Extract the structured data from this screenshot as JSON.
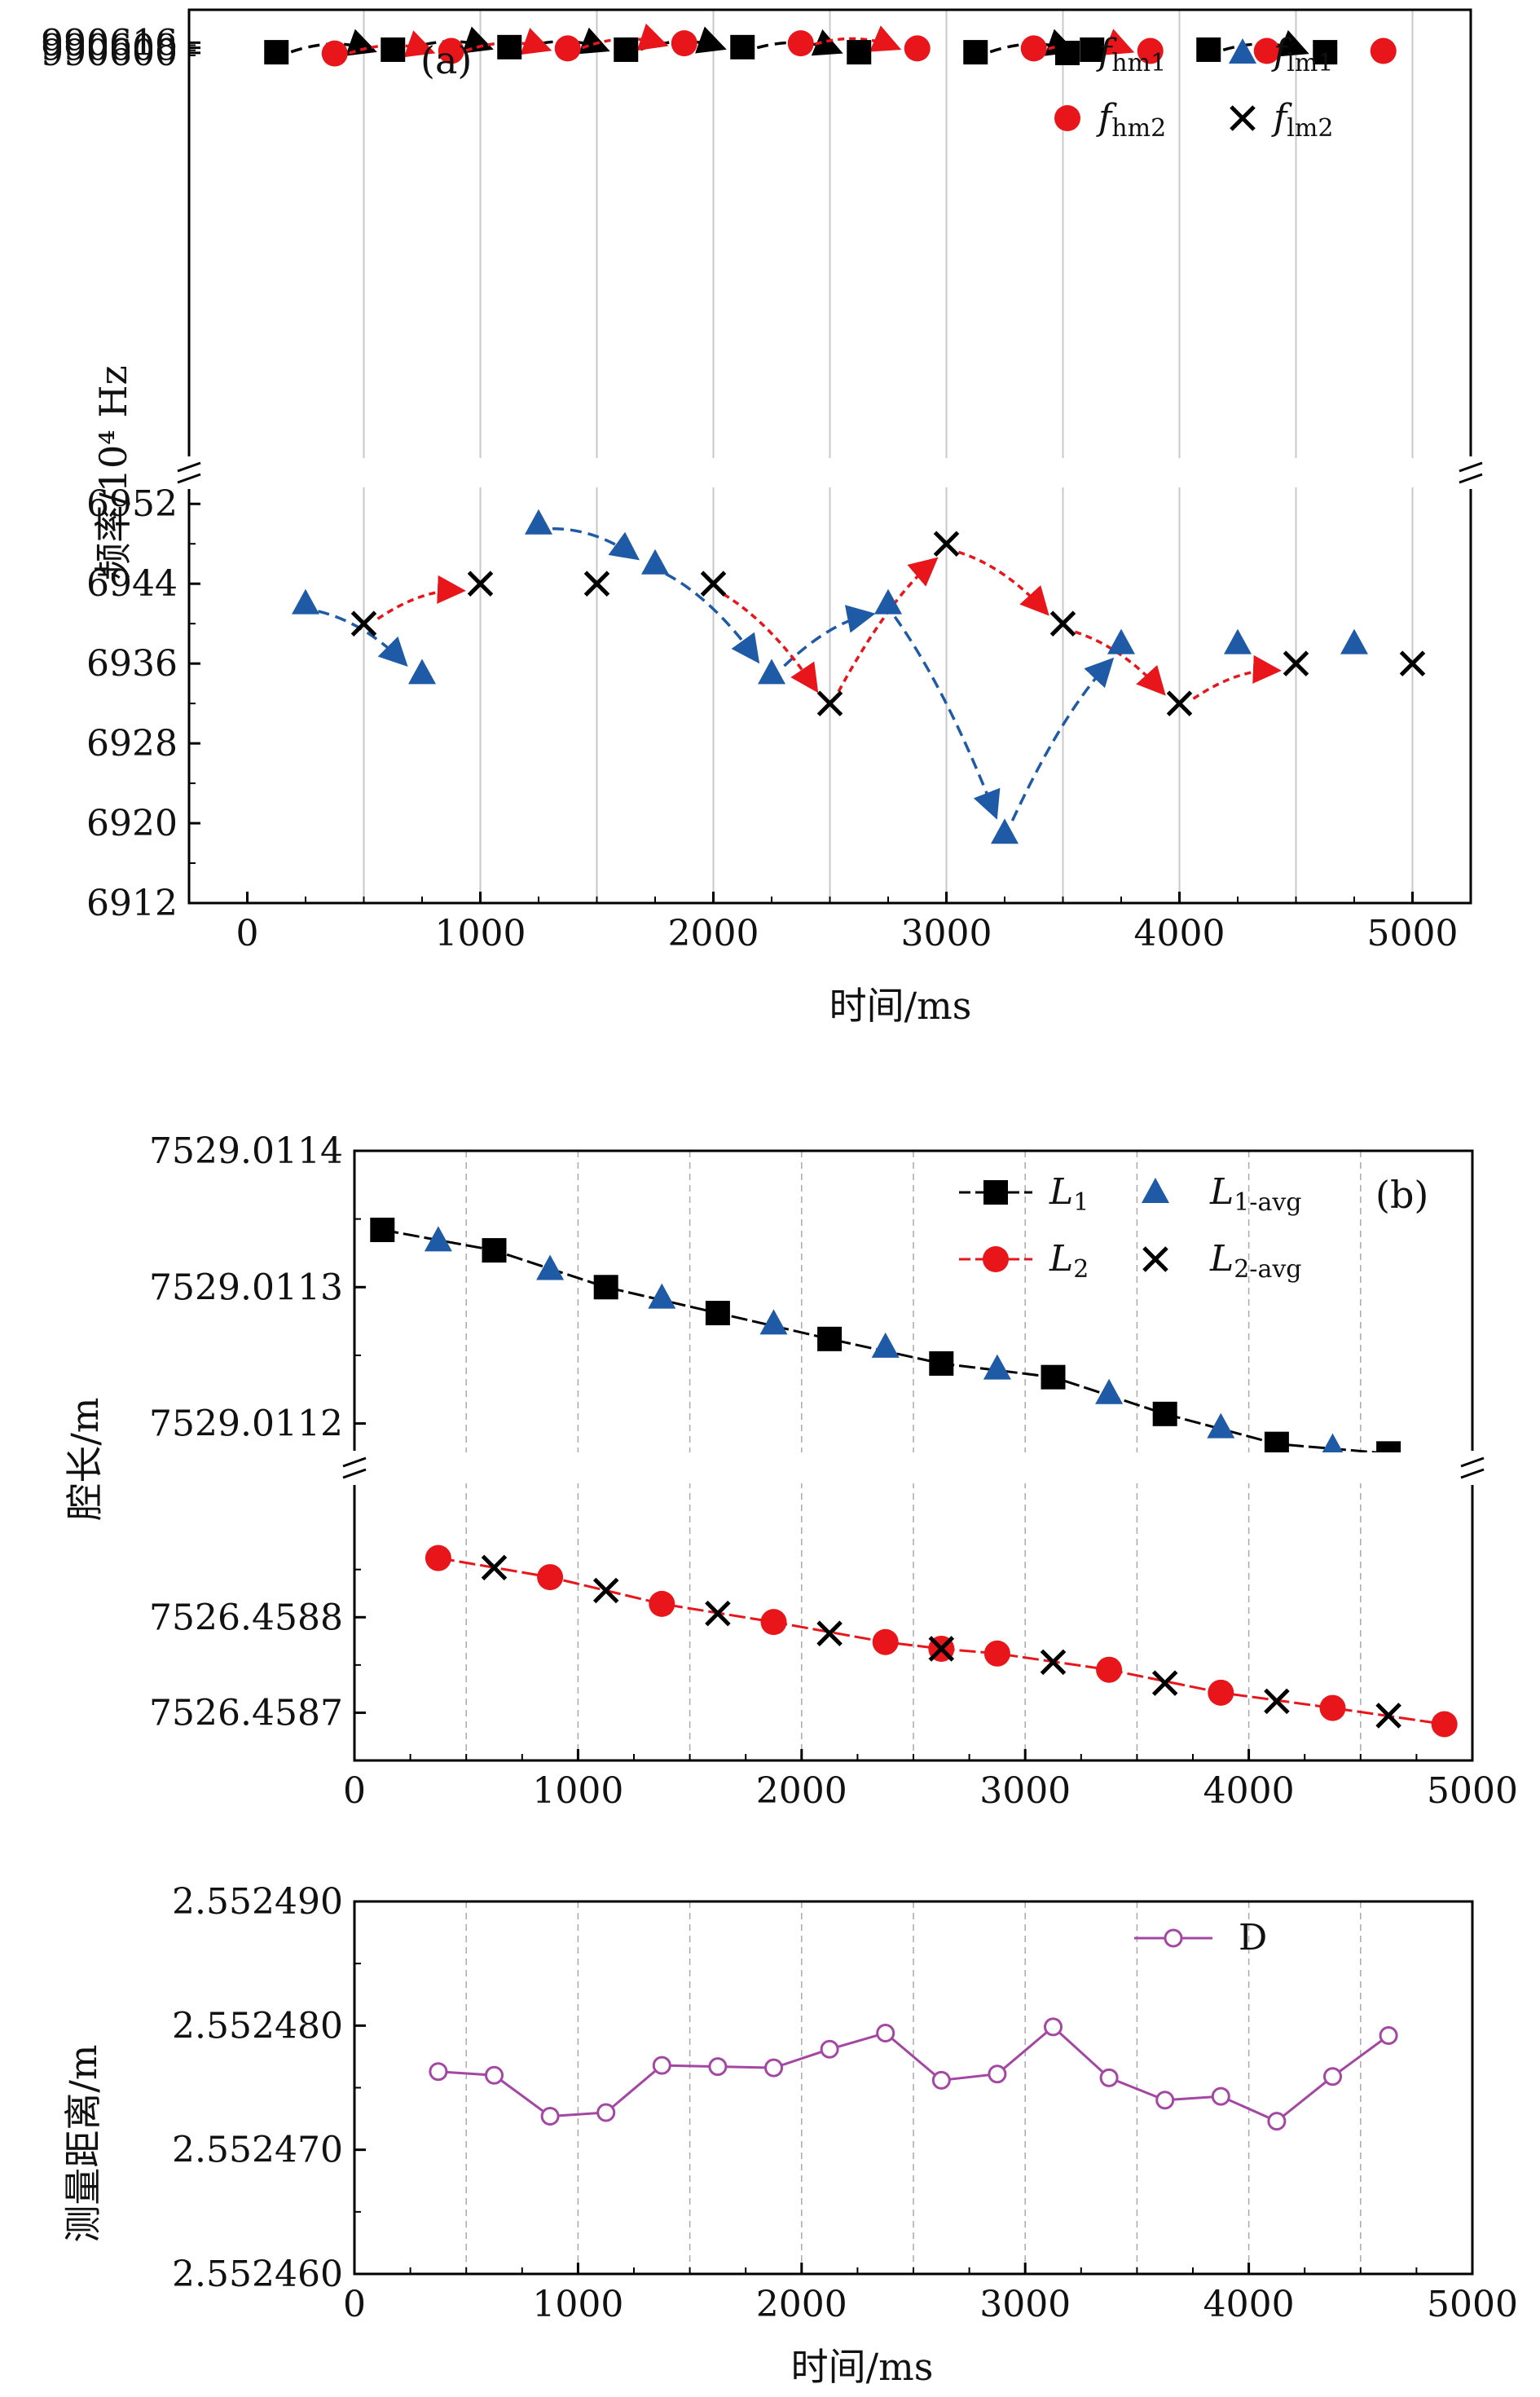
{
  "figure": {
    "panel_a_label": "(a)",
    "panel_b_label": "(b)"
  },
  "chart_data": [
    {
      "type": "scatter",
      "panel": "(a)",
      "xlabel": "时间/ms",
      "ylabel": "频率/10⁴ Hz",
      "xlim": [
        -250,
        5250
      ],
      "xticks": [
        "0",
        "1000",
        "2000",
        "3000",
        "4000",
        "5000"
      ],
      "broken_axis": true,
      "upper_ylim": [
        989993,
        990619
      ],
      "upper_yticks": [
        "990600",
        "990608",
        "990616"
      ],
      "lower_ylim": [
        6912,
        6953
      ],
      "lower_yticks": [
        "6912",
        "6920",
        "6928",
        "6936",
        "6944",
        "6952"
      ],
      "legend": [
        {
          "label": "f",
          "sub": "hm1",
          "marker": "square",
          "color": "#000000"
        },
        {
          "label": "f",
          "sub": "lm1",
          "marker": "triangle",
          "color": "#1f5aa6"
        },
        {
          "label": "f",
          "sub": "hm2",
          "marker": "circle",
          "color": "#e8151b"
        },
        {
          "label": "f",
          "sub": "lm2",
          "marker": "cross",
          "color": "#000000"
        }
      ],
      "series": [
        {
          "name": "f_hm1",
          "axis": "upper",
          "marker": "square",
          "color": "#000000",
          "x": [
            125,
            625,
            1125,
            1625,
            2125,
            2625,
            3125,
            3625,
            4125,
            4625
          ],
          "y": [
            990601,
            990605,
            990609,
            990605,
            990609,
            990601,
            990601,
            990605,
            990605,
            990601
          ]
        },
        {
          "name": "f_hm2",
          "axis": "upper",
          "marker": "circle",
          "color": "#e8151b",
          "x": [
            375,
            875,
            1375,
            1875,
            2375,
            2875,
            3375,
            3875,
            4375,
            4875
          ],
          "y": [
            990599,
            990603,
            990607,
            990615,
            990615,
            990607,
            990607,
            990603,
            990603,
            990603
          ]
        },
        {
          "name": "f_lm1",
          "axis": "lower",
          "marker": "triangle",
          "color": "#1f5aa6",
          "x": [
            250,
            750,
            1250,
            1750,
            2250,
            2750,
            3250,
            3750,
            4250,
            4750
          ],
          "y": [
            6942,
            6935,
            6950,
            6946,
            6935,
            6942,
            6919,
            6938,
            6938,
            6938
          ]
        },
        {
          "name": "f_lm2",
          "axis": "lower",
          "marker": "cross",
          "color": "#000000",
          "x": [
            500,
            1000,
            1500,
            2000,
            2500,
            3000,
            3500,
            4000,
            4500,
            5000
          ],
          "y": [
            6940,
            6944,
            6944,
            6944,
            6932,
            6948,
            6940,
            6932,
            6936,
            6936
          ]
        }
      ],
      "arrows": [
        {
          "axis": "upper",
          "color": "#000000",
          "from": [
            125,
            990601
          ],
          "to": [
            625,
            990605
          ]
        },
        {
          "axis": "upper",
          "color": "#000000",
          "from": [
            625,
            990605
          ],
          "to": [
            1125,
            990609
          ]
        },
        {
          "axis": "upper",
          "color": "#000000",
          "from": [
            1125,
            990609
          ],
          "to": [
            1625,
            990605
          ]
        },
        {
          "axis": "upper",
          "color": "#000000",
          "from": [
            1625,
            990605
          ],
          "to": [
            2125,
            990609
          ]
        },
        {
          "axis": "upper",
          "color": "#000000",
          "from": [
            2125,
            990609
          ],
          "to": [
            2625,
            990601
          ]
        },
        {
          "axis": "upper",
          "color": "#000000",
          "from": [
            3125,
            990601
          ],
          "to": [
            3625,
            990605
          ]
        },
        {
          "axis": "upper",
          "color": "#000000",
          "from": [
            4125,
            990605
          ],
          "to": [
            4625,
            990601
          ]
        },
        {
          "axis": "upper",
          "color": "#e8151b",
          "from": [
            375,
            990599
          ],
          "to": [
            875,
            990603
          ]
        },
        {
          "axis": "upper",
          "color": "#e8151b",
          "from": [
            875,
            990603
          ],
          "to": [
            1375,
            990607
          ]
        },
        {
          "axis": "upper",
          "color": "#e8151b",
          "from": [
            1375,
            990607
          ],
          "to": [
            1875,
            990615
          ]
        },
        {
          "axis": "upper",
          "color": "#e8151b",
          "from": [
            2375,
            990615
          ],
          "to": [
            2875,
            990607
          ]
        },
        {
          "axis": "upper",
          "color": "#e8151b",
          "from": [
            3375,
            990607
          ],
          "to": [
            3875,
            990603
          ]
        },
        {
          "axis": "lower",
          "color": "#1f5aa6",
          "from": [
            250,
            6942
          ],
          "to": [
            750,
            6935
          ]
        },
        {
          "axis": "lower",
          "color": "#1f5aa6",
          "from": [
            1250,
            6950
          ],
          "to": [
            1750,
            6946
          ]
        },
        {
          "axis": "lower",
          "color": "#1f5aa6",
          "from": [
            1750,
            6946
          ],
          "to": [
            2250,
            6935
          ]
        },
        {
          "axis": "lower",
          "color": "#1f5aa6",
          "from": [
            2250,
            6935
          ],
          "to": [
            2750,
            6942
          ]
        },
        {
          "axis": "lower",
          "color": "#1f5aa6",
          "from": [
            2750,
            6942
          ],
          "to": [
            3250,
            6919
          ]
        },
        {
          "axis": "lower",
          "color": "#1f5aa6",
          "from": [
            3250,
            6919
          ],
          "to": [
            3750,
            6938
          ]
        },
        {
          "axis": "lower",
          "color": "#e8151b",
          "from": [
            500,
            6940
          ],
          "to": [
            1000,
            6944
          ]
        },
        {
          "axis": "lower",
          "color": "#e8151b",
          "from": [
            2000,
            6944
          ],
          "to": [
            2500,
            6932
          ]
        },
        {
          "axis": "lower",
          "color": "#e8151b",
          "from": [
            2500,
            6932
          ],
          "to": [
            3000,
            6948
          ]
        },
        {
          "axis": "lower",
          "color": "#e8151b",
          "from": [
            3000,
            6948
          ],
          "to": [
            3500,
            6940
          ]
        },
        {
          "axis": "lower",
          "color": "#e8151b",
          "from": [
            3500,
            6940
          ],
          "to": [
            4000,
            6932
          ]
        },
        {
          "axis": "lower",
          "color": "#e8151b",
          "from": [
            4000,
            6932
          ],
          "to": [
            4500,
            6936
          ]
        }
      ]
    },
    {
      "type": "line",
      "panel": "(b)",
      "xlabel": "",
      "ylabel": "腔长/m",
      "xlim": [
        0,
        5000
      ],
      "xticks": [
        "0",
        "1000",
        "2000",
        "3000",
        "4000",
        "5000"
      ],
      "broken_axis": true,
      "upper_ylim": [
        7529.01118,
        7529.0114
      ],
      "upper_yticks": [
        "7529.0112",
        "7529.0113",
        "7529.0114"
      ],
      "lower_ylim": [
        7526.45865,
        7526.45893
      ],
      "lower_yticks": [
        "7526.4587",
        "7526.4588"
      ],
      "legend": [
        {
          "label": "L",
          "sub": "1",
          "marker": "square-line",
          "color": "#000000"
        },
        {
          "label": "L",
          "sub": "1-avg",
          "marker": "triangle",
          "color": "#1f5aa6"
        },
        {
          "label": "L",
          "sub": "2",
          "marker": "circle-line",
          "color": "#e8151b"
        },
        {
          "label": "L",
          "sub": "2-avg",
          "marker": "cross",
          "color": "#000000"
        }
      ],
      "series": [
        {
          "name": "L1",
          "axis": "upper",
          "marker": "square",
          "color": "#000000",
          "line": "dash",
          "x": [
            125,
            625,
            1125,
            1625,
            2125,
            2625,
            3125,
            3625,
            4125,
            4625
          ],
          "y": [
            7529.011342,
            7529.011327,
            7529.0113,
            7529.011281,
            7529.011262,
            7529.011244,
            7529.011234,
            7529.011207,
            7529.011185,
            7529.011178
          ]
        },
        {
          "name": "L1-avg",
          "axis": "upper",
          "marker": "triangle",
          "color": "#1f5aa6",
          "x": [
            375,
            875,
            1375,
            1875,
            2375,
            2875,
            3375,
            3875,
            4375
          ],
          "y": [
            7529.011334,
            7529.011313,
            7529.011292,
            7529.011273,
            7529.011256,
            7529.01124,
            7529.011222,
            7529.011197,
            7529.011182
          ]
        },
        {
          "name": "L2",
          "axis": "lower",
          "marker": "circle",
          "color": "#e8151b",
          "line": "dash",
          "x": [
            375,
            875,
            1375,
            1875,
            2375,
            2625,
            2875,
            3375,
            3875,
            4375,
            4875
          ],
          "y": [
            7526.458862,
            7526.458842,
            7526.458814,
            7526.458795,
            7526.458774,
            7526.458767,
            7526.458762,
            7526.458745,
            7526.458721,
            7526.458705,
            7526.458688
          ]
        },
        {
          "name": "L2-avg",
          "axis": "lower",
          "marker": "cross",
          "color": "#000000",
          "x": [
            625,
            1125,
            1625,
            2125,
            2625,
            3125,
            3625,
            4125,
            4625
          ],
          "y": [
            7526.458852,
            7526.458828,
            7526.458804,
            7526.458783,
            7526.458767,
            7526.458753,
            7526.458731,
            7526.458712,
            7526.458697
          ]
        }
      ]
    },
    {
      "type": "line",
      "panel": "(b) bottom",
      "xlabel": "时间/ms",
      "ylabel": "测量距离/m",
      "xlim": [
        0,
        5000
      ],
      "xticks": [
        "0",
        "1000",
        "2000",
        "3000",
        "4000",
        "5000"
      ],
      "ylim": [
        2.55246,
        2.55249
      ],
      "yticks": [
        "2.552460",
        "2.552470",
        "2.552480",
        "2.552490"
      ],
      "legend": [
        {
          "label": "D",
          "marker": "open-circle-line",
          "color": "#a347a3"
        }
      ],
      "series": [
        {
          "name": "D",
          "marker": "open-circle",
          "color": "#a347a3",
          "x": [
            375,
            625,
            875,
            1125,
            1375,
            1625,
            1875,
            2125,
            2375,
            2625,
            2875,
            3125,
            3375,
            3625,
            3875,
            4125,
            4375,
            4625
          ],
          "y": [
            2.5524763,
            2.552476,
            2.5524727,
            2.552473,
            2.5524768,
            2.5524767,
            2.5524766,
            2.5524781,
            2.5524794,
            2.5524756,
            2.5524761,
            2.5524799,
            2.5524758,
            2.552474,
            2.5524743,
            2.5524723,
            2.5524759,
            2.5524792
          ]
        }
      ]
    }
  ]
}
